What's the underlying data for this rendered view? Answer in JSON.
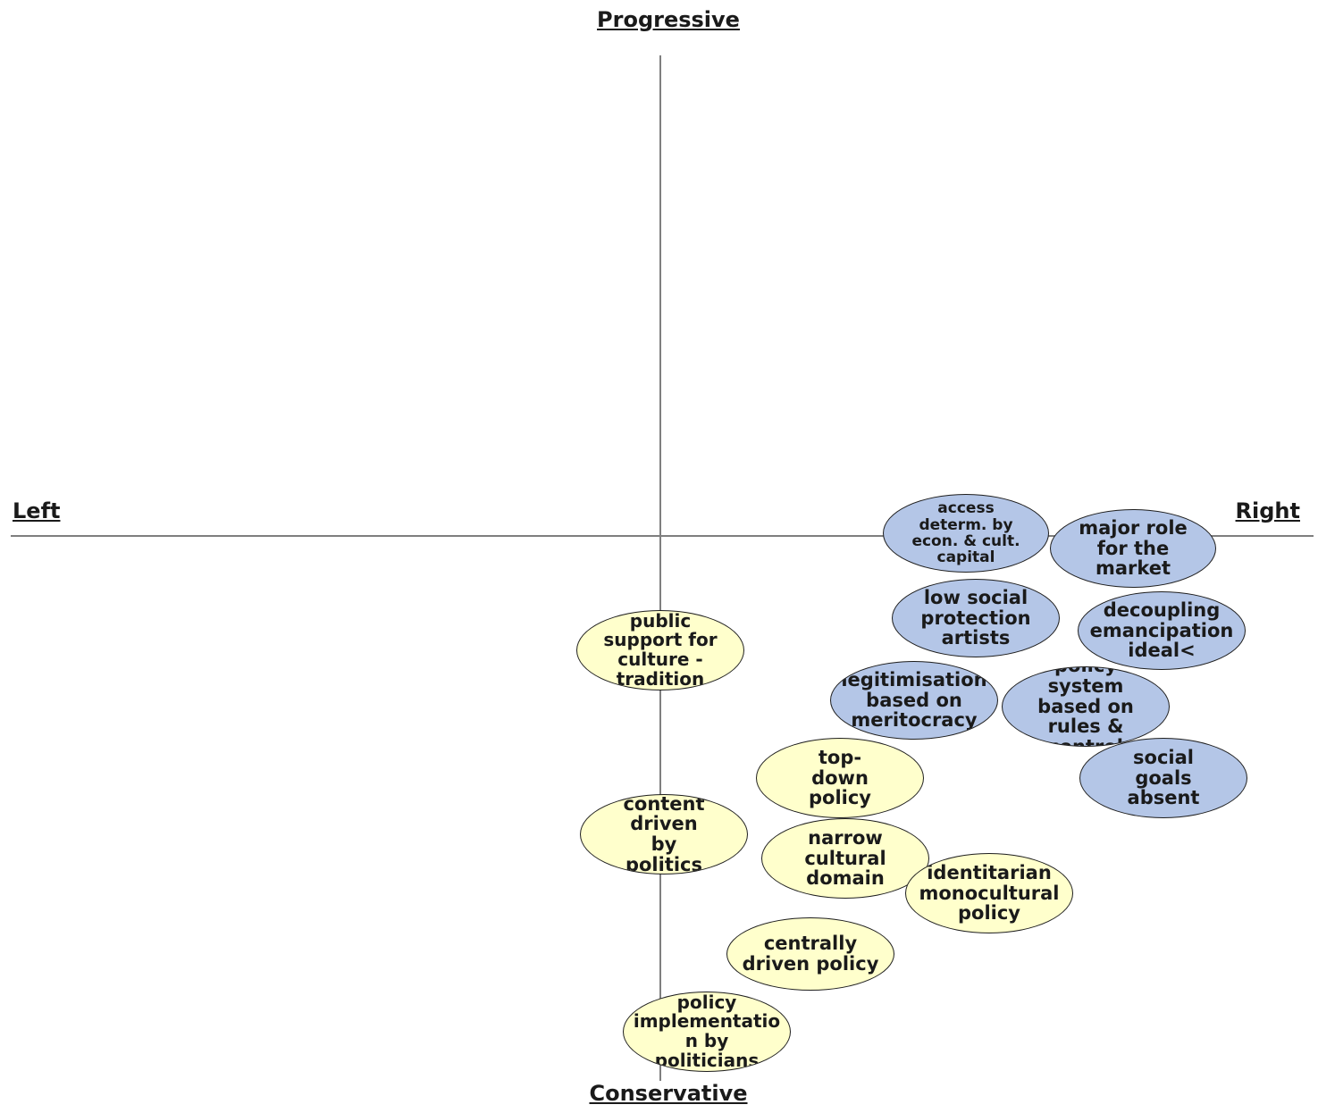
{
  "axes": {
    "top": "Progressive",
    "bottom": "Conservative",
    "left": "Left",
    "right": "Right"
  },
  "colors": {
    "axis": "#7f7f7f",
    "right_group_fill": "#b4c6e7",
    "conservative_group_fill": "#ffffcc"
  },
  "bubbles": {
    "access": "access determ. by econ. & cult. capital",
    "market": "major role for the market",
    "low_social": "low social protection artists",
    "decoupling": "decoupling emancipation ideal<",
    "legitimisation": "legitimisation based on meritocracy",
    "policy_system": "policy system based on rules & control",
    "social_goals": "social goals absent",
    "public_support": "public support for culture - tradition",
    "top_down": "top-down policy",
    "content_driven": "content driven by politics",
    "narrow": "narrow cultural domain",
    "identitarian": "identitarian monocultural policy",
    "centrally": "centrally driven  policy",
    "implementation": "policy implementatio n by politicians"
  }
}
